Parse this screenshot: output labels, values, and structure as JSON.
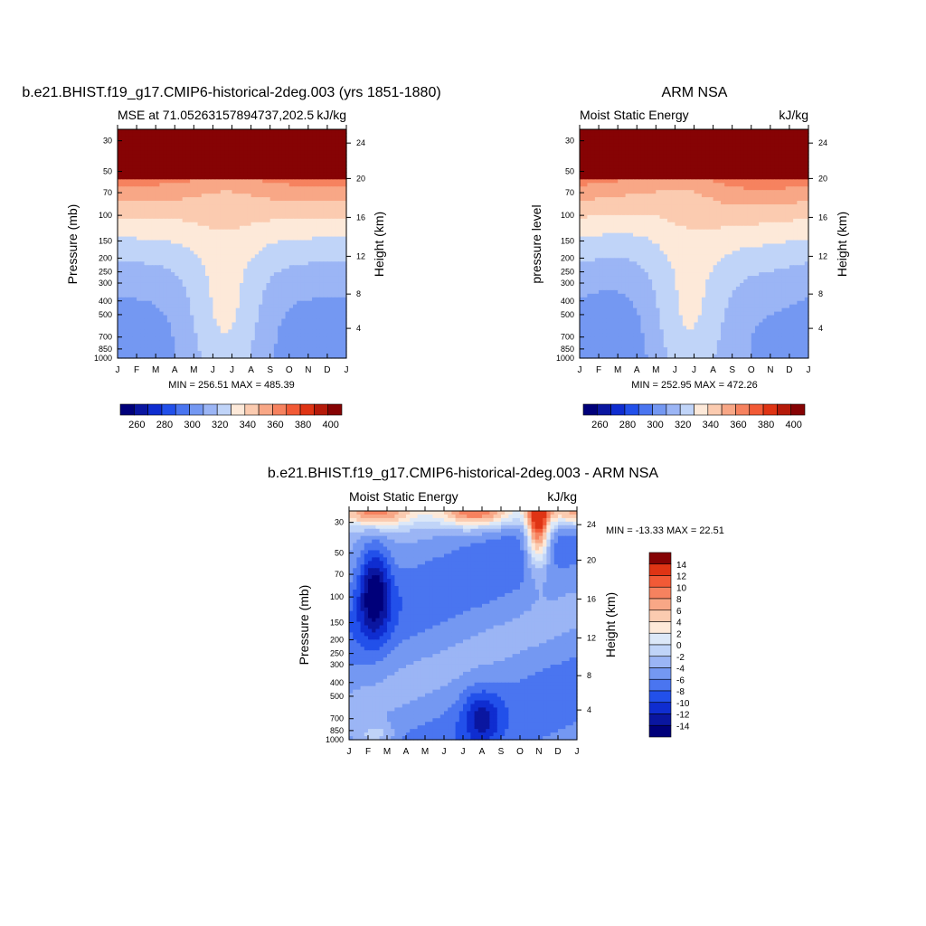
{
  "chart_data": [
    {
      "type": "heatmap",
      "id": "panel-model",
      "title": "b.e21.BHIST.f19_g17.CMIP6-historical-2deg.003 (yrs 1851-1880)",
      "subtitle_left": "MSE at 71.05263157894737,202.5",
      "subtitle_right": "kJ/kg",
      "ylabel": "Pressure (mb)",
      "ylabel_right": "Height (km)",
      "x_ticks": [
        "J",
        "F",
        "M",
        "A",
        "M",
        "J",
        "J",
        "A",
        "S",
        "O",
        "N",
        "D",
        "J"
      ],
      "y_ticks": [
        "30",
        "50",
        "70",
        "100",
        "150",
        "200",
        "250",
        "300",
        "400",
        "500",
        "700",
        "850",
        "1000"
      ],
      "y_right_ticks": [
        "24",
        "20",
        "16",
        "12",
        "8",
        "4"
      ],
      "stats": "MIN = 256.51 MAX = 485.39",
      "colorbar_labels": [
        "260",
        "280",
        "300",
        "320",
        "340",
        "360",
        "380",
        "400"
      ],
      "contour_levels": [
        250,
        260,
        270,
        280,
        290,
        300,
        310,
        320,
        330,
        340,
        350,
        360,
        370,
        380,
        390,
        400,
        410
      ]
    },
    {
      "type": "heatmap",
      "id": "panel-obs",
      "title": "ARM NSA",
      "subtitle_left": "Moist Static Energy",
      "subtitle_right": "kJ/kg",
      "ylabel": "pressure level",
      "ylabel_right": "Height (km)",
      "x_ticks": [
        "J",
        "F",
        "M",
        "A",
        "M",
        "J",
        "J",
        "A",
        "S",
        "O",
        "N",
        "D",
        "J"
      ],
      "y_ticks": [
        "30",
        "50",
        "70",
        "100",
        "150",
        "200",
        "250",
        "300",
        "400",
        "500",
        "700",
        "850",
        "1000"
      ],
      "y_right_ticks": [
        "24",
        "20",
        "16",
        "12",
        "8",
        "4"
      ],
      "stats": "MIN = 252.95 MAX = 472.26",
      "colorbar_labels": [
        "260",
        "280",
        "300",
        "320",
        "340",
        "360",
        "380",
        "400"
      ],
      "contour_levels": [
        250,
        260,
        270,
        280,
        290,
        300,
        310,
        320,
        330,
        340,
        350,
        360,
        370,
        380,
        390,
        400,
        410
      ]
    },
    {
      "type": "heatmap",
      "id": "panel-diff",
      "title": "b.e21.BHIST.f19_g17.CMIP6-historical-2deg.003 - ARM NSA",
      "subtitle_left": "Moist Static Energy",
      "subtitle_right": "kJ/kg",
      "ylabel": "Pressure (mb)",
      "ylabel_right": "Height (km)",
      "x_ticks": [
        "J",
        "F",
        "M",
        "A",
        "M",
        "J",
        "J",
        "A",
        "S",
        "O",
        "N",
        "D",
        "J"
      ],
      "y_ticks": [
        "30",
        "50",
        "70",
        "100",
        "150",
        "200",
        "250",
        "300",
        "400",
        "500",
        "700",
        "850",
        "1000"
      ],
      "y_right_ticks": [
        "24",
        "20",
        "16",
        "12",
        "8",
        "4"
      ],
      "stats": "MIN = -13.33 MAX =  22.51",
      "colorbar_labels": [
        "14",
        "12",
        "10",
        "8",
        "6",
        "4",
        "2",
        "0",
        "-2",
        "-4",
        "-6",
        "-8",
        "-10",
        "-12",
        "-14"
      ],
      "contour_levels": [
        -14,
        -12,
        -10,
        -8,
        -6,
        -4,
        -2,
        0,
        2,
        4,
        6,
        8,
        10,
        12,
        14
      ]
    }
  ],
  "colors": {
    "scale_16": [
      "#00007a",
      "#0a16a0",
      "#0f2dd0",
      "#2250ea",
      "#4a75f0",
      "#7498f2",
      "#9bb5f5",
      "#c0d4f8",
      "#fde9d9",
      "#fbcbb0",
      "#f8a786",
      "#f6825f",
      "#f25a36",
      "#df3414",
      "#b51a0a",
      "#860304"
    ],
    "scale_16_diff": [
      "#00007a",
      "#0a16a0",
      "#0f2dd0",
      "#2250ea",
      "#4a75f0",
      "#7498f2",
      "#9bb5f5",
      "#c0d4f8",
      "#dce8f8",
      "#fde9d9",
      "#fbcbb0",
      "#f8a786",
      "#f6825f",
      "#f25a36",
      "#df3414",
      "#860304"
    ]
  }
}
